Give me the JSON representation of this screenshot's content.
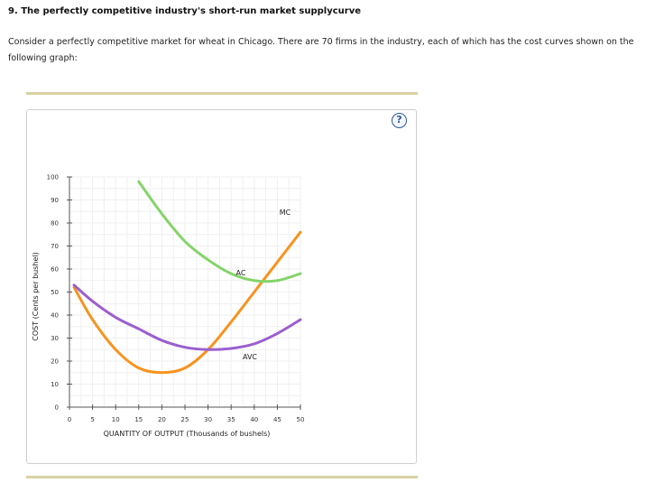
{
  "question": {
    "title": "9. The perfectly competitive industry's short-run market supplycurve",
    "text": "Consider a perfectly competitive market for wheat in Chicago. There are 70 firms in the industry, each of which has the cost curves shown on the following graph:"
  },
  "help_button": {
    "label": "?",
    "icon": "question-mark-icon"
  },
  "colors": {
    "mc": "#f7931e",
    "ac": "#84d46a",
    "avc": "#9b5fcf",
    "rule": "#d8d2a4",
    "help": "#2c5aa0"
  },
  "chart_data": {
    "type": "line",
    "xlabel": "QUANTITY OF OUTPUT (Thousands of bushels)",
    "ylabel": "COST (Cents per bushel)",
    "xlim": [
      0,
      50
    ],
    "ylim": [
      0,
      100
    ],
    "xticks": [
      "0",
      "5",
      "10",
      "15",
      "20",
      "25",
      "30",
      "35",
      "40",
      "45",
      "50"
    ],
    "yticks": [
      "0",
      "10",
      "20",
      "30",
      "40",
      "50",
      "60",
      "70",
      "80",
      "90",
      "100"
    ],
    "grid": true,
    "series": [
      {
        "name": "MC",
        "color": "#f7931e",
        "x": [
          1,
          5,
          10,
          15,
          20,
          25,
          30,
          35,
          40,
          45,
          50
        ],
        "y": [
          52,
          38,
          25,
          17,
          15,
          17,
          25,
          37,
          50,
          63,
          76
        ]
      },
      {
        "name": "AC",
        "color": "#84d46a",
        "x": [
          15,
          20,
          25,
          30,
          35,
          40,
          45,
          50
        ],
        "y": [
          98,
          84,
          72,
          64,
          58,
          55,
          55,
          58
        ]
      },
      {
        "name": "AVC",
        "color": "#9b5fcf",
        "x": [
          1,
          5,
          10,
          15,
          20,
          25,
          30,
          35,
          40,
          45,
          50
        ],
        "y": [
          53,
          46,
          39,
          34,
          29,
          26,
          25,
          25.5,
          27.5,
          32,
          38
        ]
      }
    ]
  }
}
